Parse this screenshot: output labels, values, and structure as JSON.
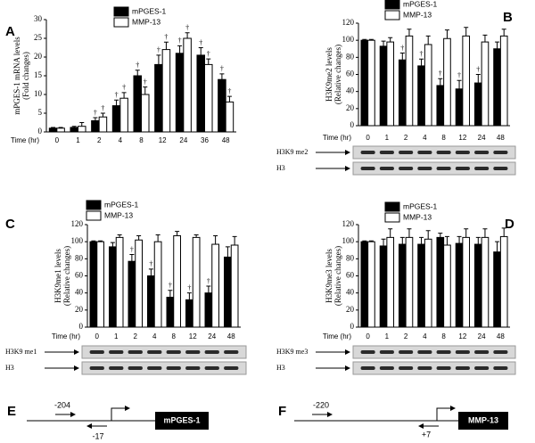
{
  "chart_data": [
    {
      "type": "bar",
      "panel_label": "A",
      "x_label": "Time (hr)",
      "y_label": [
        "mPGES-1 mRNA levels",
        "(Fold changes)"
      ],
      "categories": [
        "0",
        "1",
        "2",
        "4",
        "8",
        "12",
        "24",
        "36",
        "48"
      ],
      "series": [
        {
          "name": "mPGES-1",
          "color": "#000000",
          "values": [
            1,
            1.2,
            3,
            7,
            15,
            18,
            21,
            20.5,
            14
          ],
          "errors": [
            0.2,
            0.3,
            0.8,
            1.5,
            1.5,
            2.5,
            2,
            2,
            1.5
          ],
          "sig_labels": [
            null,
            null,
            "†",
            "†",
            "†",
            "†",
            "†",
            "†",
            "†"
          ]
        },
        {
          "name": "MMP-13",
          "color": "#ffffff",
          "values": [
            1,
            1.5,
            4,
            9,
            10,
            22,
            25,
            18,
            8
          ],
          "errors": [
            0.2,
            1,
            1,
            1.5,
            2,
            2,
            1.5,
            1.5,
            1.5
          ],
          "sig_labels": [
            null,
            null,
            "†",
            "†",
            "†",
            "†",
            "†",
            "†",
            "†"
          ]
        }
      ],
      "ylim": [
        0,
        30
      ],
      "yticks": [
        0,
        5,
        10,
        15,
        20,
        25,
        30
      ]
    },
    {
      "type": "bar",
      "panel_label": "B",
      "x_label": "Time (hr)",
      "y_label": [
        "H3K9me2 levels",
        "(Relative changes)"
      ],
      "categories": [
        "0",
        "1",
        "2",
        "4",
        "8",
        "12",
        "24",
        "48"
      ],
      "series": [
        {
          "name": "mPGES-1",
          "color": "#000000",
          "values": [
            100,
            93,
            77,
            70,
            47,
            43,
            50,
            90
          ],
          "errors": [
            1,
            6,
            8,
            8,
            8,
            10,
            10,
            8
          ],
          "sig_labels": [
            null,
            null,
            "†",
            "†",
            "†",
            "†",
            "†",
            null
          ]
        },
        {
          "name": "MMP-13",
          "color": "#ffffff",
          "values": [
            100,
            98,
            105,
            95,
            102,
            105,
            98,
            105
          ],
          "errors": [
            1,
            5,
            8,
            10,
            10,
            10,
            8,
            8
          ],
          "sig_labels": [
            null,
            null,
            null,
            null,
            null,
            null,
            null,
            null
          ]
        }
      ],
      "ylim": [
        0,
        120
      ],
      "yticks": [
        0,
        20,
        40,
        60,
        80,
        100,
        120
      ],
      "blot_labels": [
        "H3K9 me2",
        "H3"
      ]
    },
    {
      "type": "bar",
      "panel_label": "C",
      "x_label": "Time (hr)",
      "y_label": [
        "H3K9me1 levels",
        "(Relative changes)"
      ],
      "categories": [
        "0",
        "1",
        "2",
        "4",
        "8",
        "12",
        "24",
        "48"
      ],
      "series": [
        {
          "name": "mPGES-1",
          "color": "#000000",
          "values": [
            100,
            94,
            77,
            60,
            35,
            32,
            40,
            82
          ],
          "errors": [
            1,
            5,
            8,
            8,
            8,
            8,
            8,
            12
          ],
          "sig_labels": [
            null,
            null,
            "†",
            "†",
            "†",
            "†",
            "†",
            null
          ]
        },
        {
          "name": "MMP-13",
          "color": "#ffffff",
          "values": [
            100,
            105,
            102,
            100,
            107,
            105,
            97,
            96
          ],
          "errors": [
            1,
            3,
            5,
            8,
            5,
            3,
            10,
            10
          ],
          "sig_labels": [
            null,
            null,
            null,
            null,
            null,
            null,
            null,
            null
          ]
        }
      ],
      "ylim": [
        0,
        120
      ],
      "yticks": [
        0,
        20,
        40,
        60,
        80,
        100,
        120
      ],
      "blot_labels": [
        "H3K9 me1",
        "H3"
      ]
    },
    {
      "type": "bar",
      "panel_label": "D",
      "x_label": "Time (hr)",
      "y_label": [
        "H3K9me3 levels",
        "(Relative changes)"
      ],
      "categories": [
        "0",
        "1",
        "2",
        "4",
        "8",
        "12",
        "24",
        "48"
      ],
      "series": [
        {
          "name": "mPGES-1",
          "color": "#000000",
          "values": [
            100,
            95,
            97,
            97,
            105,
            98,
            97,
            88
          ],
          "errors": [
            1,
            8,
            8,
            8,
            5,
            8,
            8,
            12
          ],
          "sig_labels": [
            null,
            null,
            null,
            null,
            null,
            null,
            null,
            null
          ]
        },
        {
          "name": "MMP-13",
          "color": "#ffffff",
          "values": [
            100,
            105,
            105,
            103,
            96,
            105,
            105,
            106
          ],
          "errors": [
            1,
            10,
            10,
            10,
            10,
            10,
            10,
            10
          ],
          "sig_labels": [
            null,
            null,
            null,
            null,
            null,
            null,
            null,
            null
          ]
        }
      ],
      "ylim": [
        0,
        120
      ],
      "yticks": [
        0,
        20,
        40,
        60,
        80,
        100,
        120
      ],
      "blot_labels": [
        "H3K9 me3",
        "H3"
      ]
    }
  ],
  "diagrams": [
    {
      "panel_label": "E",
      "gene": "mPGES-1",
      "forward_primer": "-204",
      "reverse_primer": "-17"
    },
    {
      "panel_label": "F",
      "gene": "MMP-13",
      "forward_primer": "-220",
      "reverse_primer": "+7"
    }
  ]
}
